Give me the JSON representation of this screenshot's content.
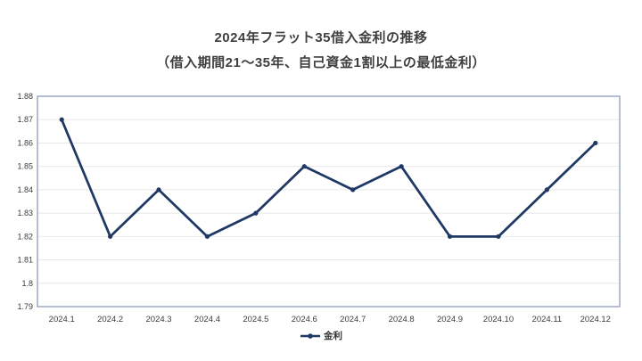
{
  "chart_data": {
    "type": "line",
    "title": "2024年フラット35借入金利の推移",
    "subtitle": "（借入期間21～35年、自己資金1割以上の最低金利）",
    "categories": [
      "2024.1",
      "2024.2",
      "2024.3",
      "2024.4",
      "2024.5",
      "2024.6",
      "2024.7",
      "2024.8",
      "2024.9",
      "2024.10",
      "2024.11",
      "2024.12"
    ],
    "series": [
      {
        "name": "金利",
        "values": [
          1.87,
          1.82,
          1.84,
          1.82,
          1.83,
          1.85,
          1.84,
          1.85,
          1.82,
          1.82,
          1.84,
          1.86
        ]
      }
    ],
    "xlabel": "",
    "ylabel": "",
    "ylim": [
      1.79,
      1.88
    ],
    "y_tick_step": 0.01,
    "y_tick_labels": [
      "1.79",
      "1.8",
      "1.81",
      "1.82",
      "1.83",
      "1.84",
      "1.85",
      "1.86",
      "1.87",
      "1.88"
    ],
    "grid": true,
    "legend_position": "bottom-center",
    "colors": {
      "line": "#1f3864",
      "marker": "#1f3864",
      "grid_line": "#e8e8e8",
      "plot_border": "#8e9cc0",
      "title_text": "#3f3f3f",
      "axis_text": "#3c3c3c",
      "background": "#ffffff"
    }
  }
}
